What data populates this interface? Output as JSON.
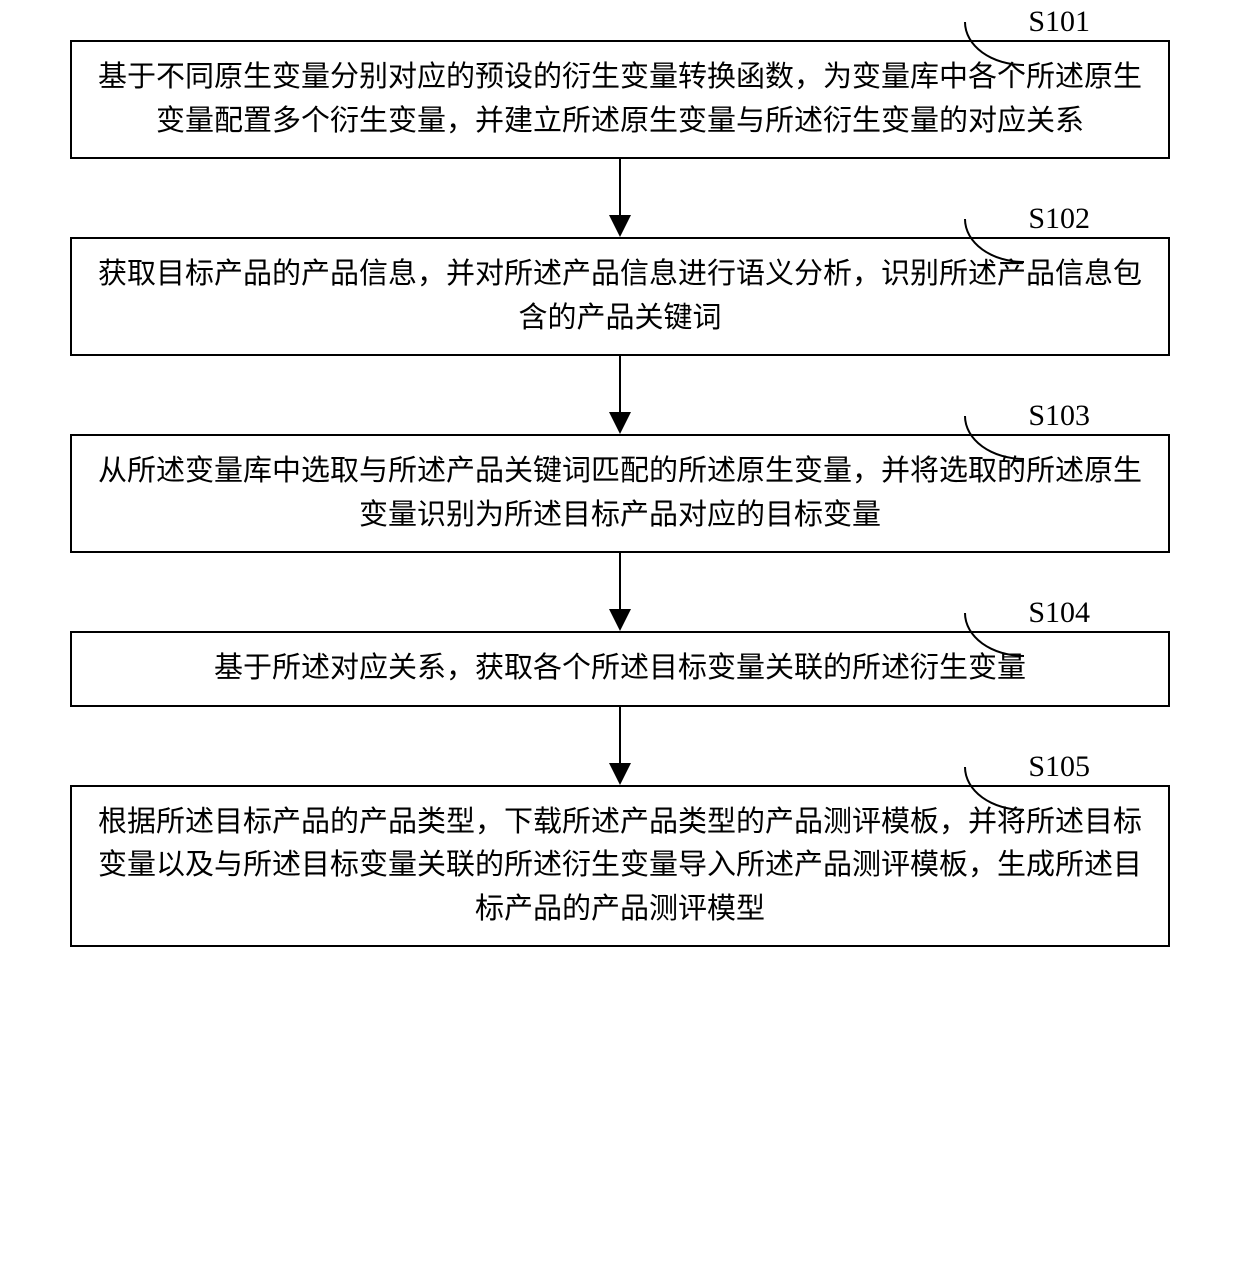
{
  "flowchart": {
    "type": "flowchart",
    "direction": "vertical",
    "box_border_color": "#000000",
    "box_border_width": 2.5,
    "box_background": "#ffffff",
    "text_color": "#000000",
    "content_fontsize": 29,
    "label_fontsize": 30,
    "label_font_family": "Times New Roman",
    "arrow_color": "#000000",
    "arrow_line_width": 2.5,
    "arrow_head_width": 22,
    "arrow_head_height": 22,
    "arrow_gap_height": 78,
    "steps": [
      {
        "id": "S101",
        "text": "基于不同原生变量分别对应的预设的衍生变量转换函数，为变量库中各个所述原生变量配置多个衍生变量，并建立所述原生变量与所述衍生变量的对应关系"
      },
      {
        "id": "S102",
        "text": "获取目标产品的产品信息，并对所述产品信息进行语义分析，识别所述产品信息包含的产品关键词"
      },
      {
        "id": "S103",
        "text": "从所述变量库中选取与所述产品关键词匹配的所述原生变量，并将选取的所述原生变量识别为所述目标产品对应的目标变量"
      },
      {
        "id": "S104",
        "text": "基于所述对应关系，获取各个所述目标变量关联的所述衍生变量"
      },
      {
        "id": "S105",
        "text": "根据所述目标产品的产品类型，下载所述产品类型的产品测评模板，并将所述目标变量以及与所述目标变量关联的所述衍生变量导入所述产品测评模板，生成所述目标产品的产品测评模型"
      }
    ]
  }
}
